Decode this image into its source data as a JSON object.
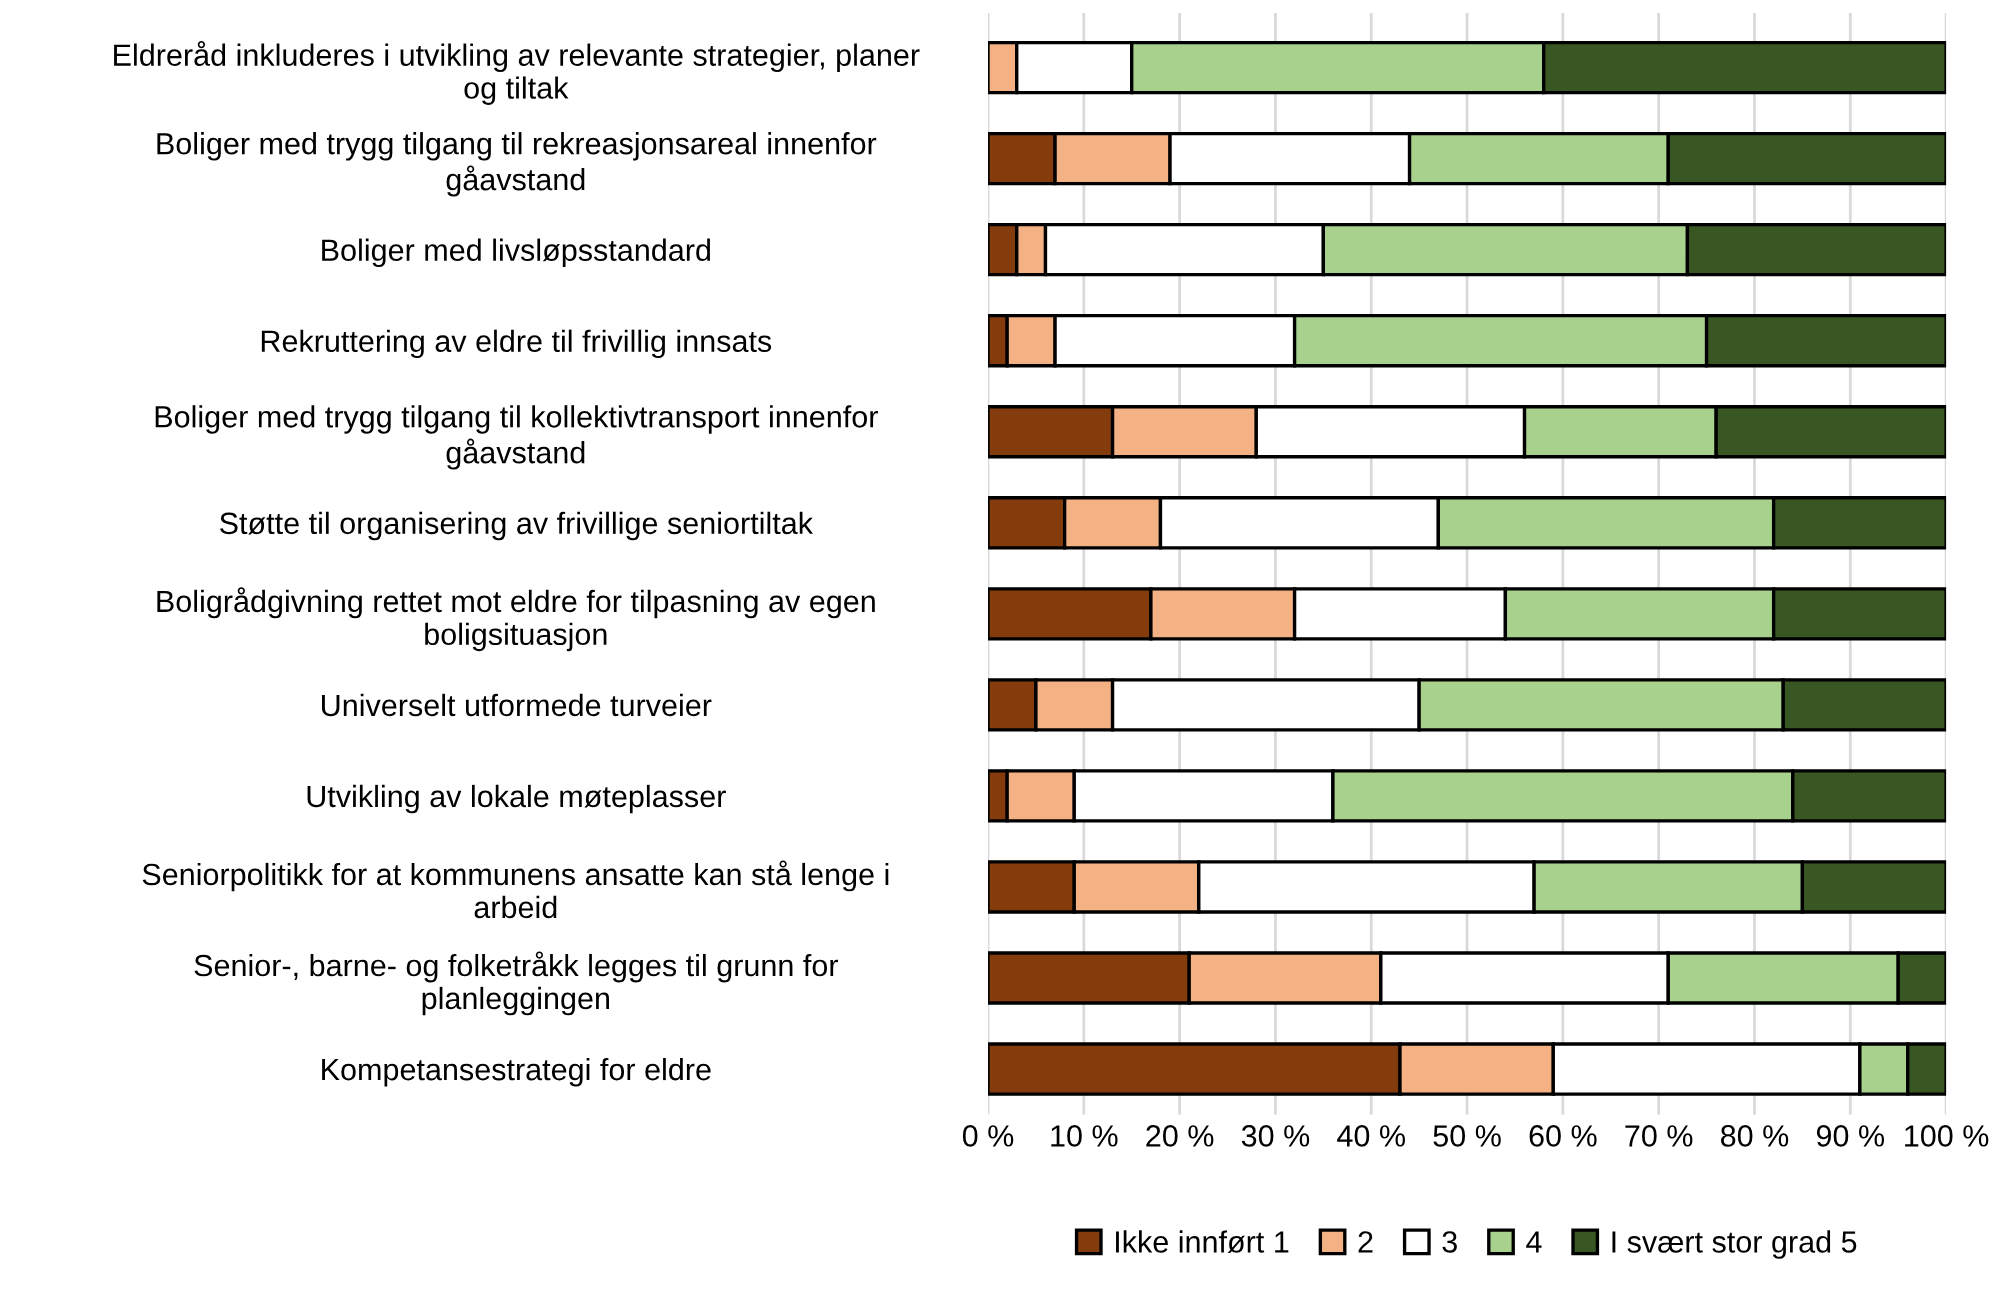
{
  "chart_data": {
    "type": "bar",
    "orientation": "horizontal",
    "stacked": true,
    "categories": [
      "Eldreråd inkluderes i utvikling av relevante strategier, planer\nog tiltak",
      "Boliger med trygg tilgang til rekreasjonsareal innenfor\ngåavstand",
      "Boliger med livsløpsstandard",
      "Rekruttering av eldre til frivillig innsats",
      "Boliger med trygg tilgang til kollektivtransport innenfor\ngåavstand",
      "Støtte til organisering av frivillige seniortiltak",
      "Boligrådgivning rettet mot eldre for tilpasning av egen\nboligsituasjon",
      "Universelt utformede turveier",
      "Utvikling av lokale møteplasser",
      "Seniorpolitikk for at kommunens ansatte kan stå lenge i\narbeid",
      "Senior-, barne- og folketråkk legges til grunn for\nplanleggingen",
      "Kompetansestrategi for eldre"
    ],
    "series": [
      {
        "name": "Ikke innført 1",
        "color": "#843c0c",
        "values": [
          0,
          7,
          3,
          2,
          13,
          8,
          17,
          5,
          2,
          9,
          21,
          43
        ]
      },
      {
        "name": "2",
        "color": "#f4b183",
        "values": [
          3,
          12,
          3,
          5,
          15,
          10,
          15,
          8,
          7,
          13,
          20,
          16
        ]
      },
      {
        "name": "3",
        "color": "#ffffff",
        "values": [
          12,
          25,
          29,
          25,
          28,
          29,
          22,
          32,
          27,
          35,
          30,
          32
        ]
      },
      {
        "name": "4",
        "color": "#a9d18e",
        "values": [
          43,
          27,
          38,
          43,
          20,
          35,
          28,
          38,
          48,
          28,
          24,
          5
        ]
      },
      {
        "name": "I svært stor grad 5",
        "color": "#385723",
        "values": [
          42,
          29,
          27,
          25,
          24,
          18,
          18,
          17,
          16,
          15,
          5,
          4
        ]
      }
    ],
    "xlim": [
      0,
      100
    ],
    "xticks": [
      {
        "value": 0,
        "label": "0 %"
      },
      {
        "value": 10,
        "label": "10 %"
      },
      {
        "value": 20,
        "label": "20 %"
      },
      {
        "value": 30,
        "label": "30 %"
      },
      {
        "value": 40,
        "label": "40 %"
      },
      {
        "value": 50,
        "label": "50 %"
      },
      {
        "value": 60,
        "label": "60 %"
      },
      {
        "value": 70,
        "label": "70 %"
      },
      {
        "value": 80,
        "label": "80 %"
      },
      {
        "value": 90,
        "label": "90 %"
      },
      {
        "value": 100,
        "label": "100 %"
      }
    ],
    "grid": "x",
    "legend": "bottom"
  }
}
